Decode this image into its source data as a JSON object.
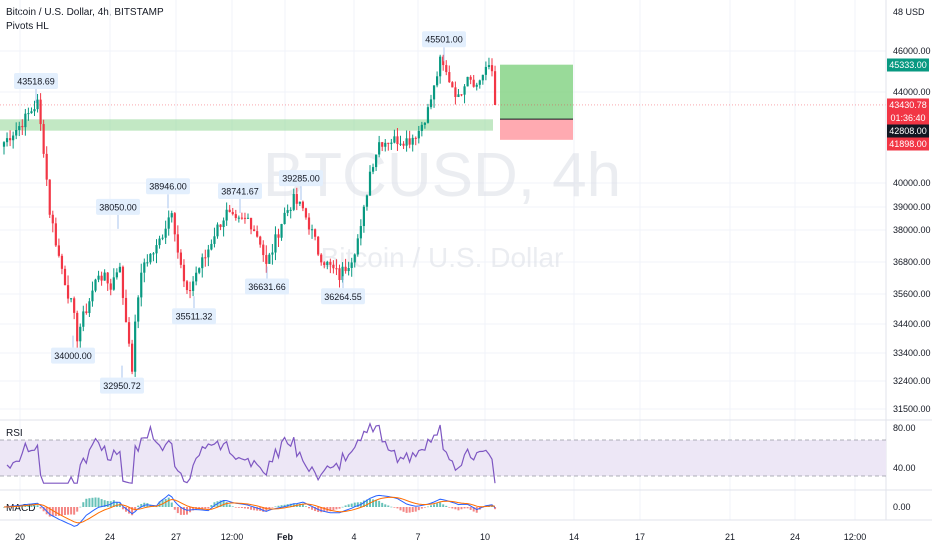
{
  "header": {
    "symbol_line": "Bitcoin / U.S. Dollar, 4h, BITSTAMP",
    "indicator_name": "Pivots HL"
  },
  "watermark": {
    "ticker": "BTCUSD, 4h",
    "name": "Bitcoin / U.S. Dollar"
  },
  "price_axis": {
    "currency": "USD",
    "currency_prefix": "48",
    "ticks": [
      "46000.00",
      "44000.00",
      "40000.00",
      "39000.00",
      "38000.00",
      "36800.00",
      "35600.00",
      "34400.00",
      "33400.00",
      "32400.00",
      "31500.00"
    ],
    "markers": [
      {
        "text": "45333.00",
        "color": "#089981",
        "value": 45333
      },
      {
        "text": "43430.78",
        "color": "#f23645",
        "value": 43430.78
      },
      {
        "text": "01:36:40",
        "color": "#f23645",
        "value": 43150
      },
      {
        "text": "42808.00",
        "color": "#131722",
        "value": 42808
      },
      {
        "text": "41898.00",
        "color": "#f23645",
        "value": 41898
      }
    ]
  },
  "time_axis": {
    "labels": [
      "20",
      "24",
      "27",
      "12:00",
      "Feb",
      "4",
      "7",
      "10",
      "14",
      "17",
      "21",
      "24",
      "12:00"
    ]
  },
  "chart_data": {
    "type": "candlestick",
    "pivots": [
      {
        "label": "43518.69",
        "value": 43518.69,
        "kind": "high",
        "date": "Jan 19"
      },
      {
        "label": "34000.00",
        "value": 34000.0,
        "kind": "low",
        "date": "Jan 22"
      },
      {
        "label": "38050.00",
        "value": 38050.0,
        "kind": "high",
        "date": "Jan 23"
      },
      {
        "label": "32950.72",
        "value": 32950.72,
        "kind": "low",
        "date": "Jan 24"
      },
      {
        "label": "38946.00",
        "value": 38946.0,
        "kind": "high",
        "date": "Jan 26"
      },
      {
        "label": "35511.32",
        "value": 35511.32,
        "kind": "low",
        "date": "Jan 27"
      },
      {
        "label": "38741.67",
        "value": 38741.67,
        "kind": "high",
        "date": "Jan 28"
      },
      {
        "label": "36631.66",
        "value": 36631.66,
        "kind": "low",
        "date": "Jan 30"
      },
      {
        "label": "39285.00",
        "value": 39285.0,
        "kind": "high",
        "date": "Jan 31"
      },
      {
        "label": "36264.55",
        "value": 36264.55,
        "kind": "low",
        "date": "Feb 3"
      },
      {
        "label": "45501.00",
        "value": 45501.0,
        "kind": "high",
        "date": "Feb 8"
      }
    ],
    "support_zone": [
      42300,
      42800
    ],
    "long_position": {
      "entry": 42808.0,
      "target": 45333.0,
      "stop": 41898.0
    },
    "last_price": 43430.78,
    "countdown": "01:36:40",
    "indicators": [
      {
        "name": "RSI",
        "levels": [
          70,
          30
        ],
        "ticks": [
          "80.00",
          "40.00"
        ],
        "color": "#7e57c2"
      },
      {
        "name": "MACD",
        "ticks": [
          "0.00"
        ],
        "macd_color": "#2962ff",
        "signal_color": "#ff6d00"
      }
    ]
  },
  "colors": {
    "up": "#089981",
    "down": "#f23645",
    "zone": "#8fd694",
    "profit": "#7fd17f",
    "loss": "#ffa1a8",
    "rsi": "#7e57c2",
    "rsi_band": "#ede7f6",
    "grid": "#f0f3fa",
    "axis_text": "#131722",
    "pivot_bg": "#e3effd"
  }
}
